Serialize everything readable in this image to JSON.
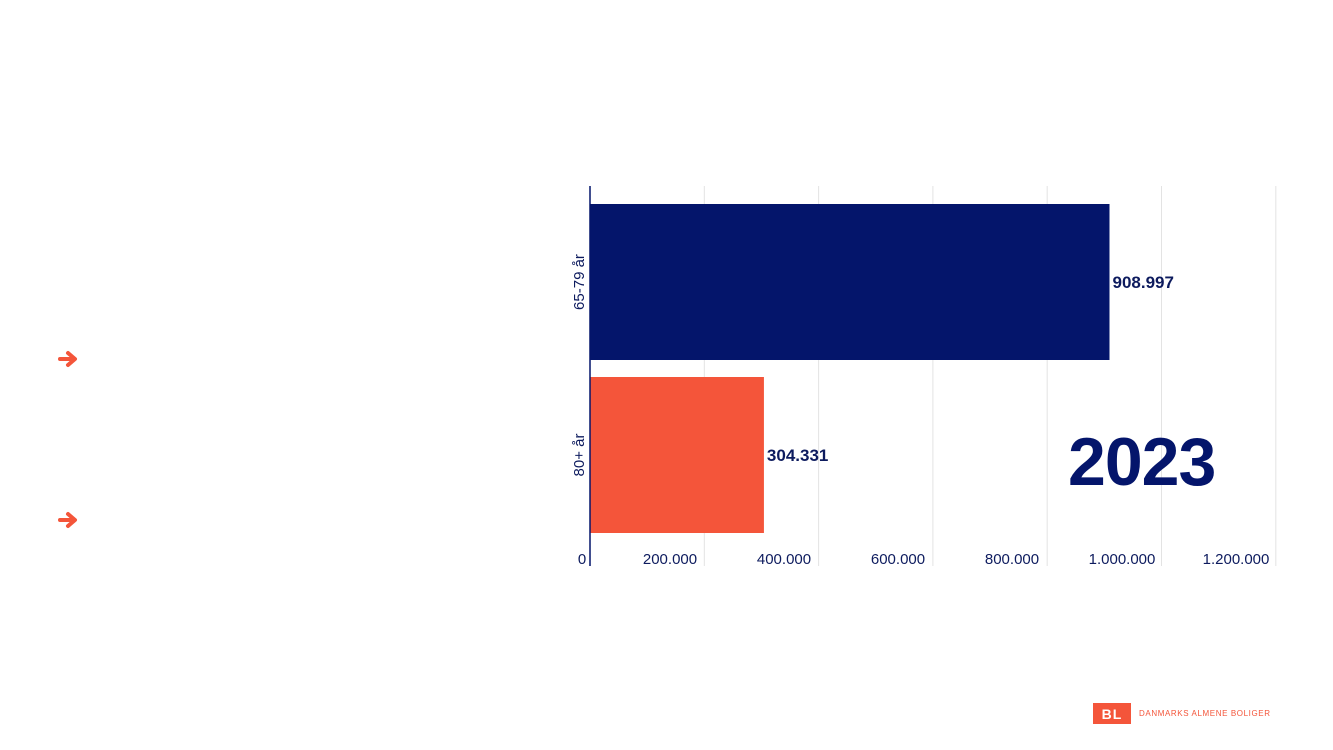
{
  "colors": {
    "navy": "#04156b",
    "coral": "#f4553a",
    "text": "#0d1b5e",
    "grid": "#e3e3e3"
  },
  "bullets": [
    {
      "icon": "arrow-right-icon",
      "color": "#f4553a"
    },
    {
      "icon": "arrow-right-icon",
      "color": "#f4553a"
    }
  ],
  "chart_data": {
    "type": "bar",
    "orientation": "horizontal",
    "categories": [
      "65-79 år",
      "80+ år"
    ],
    "values": [
      908997,
      304331
    ],
    "value_labels": [
      "908.997",
      "304.331"
    ],
    "bar_colors": [
      "#04156b",
      "#f4553a"
    ],
    "xlim": [
      0,
      1200000
    ],
    "xticks": [
      0,
      200000,
      400000,
      600000,
      800000,
      1000000,
      1200000
    ],
    "xtick_labels": [
      "0",
      "200.000",
      "400.000",
      "600.000",
      "800.000",
      "1.000.000",
      "1.200.000"
    ],
    "grid": true,
    "title": "",
    "xlabel": "",
    "ylabel": ""
  },
  "annotation": {
    "year": "2023"
  },
  "logo": {
    "abbr": "BL",
    "name": "DANMARKS ALMENE BOLIGER"
  }
}
